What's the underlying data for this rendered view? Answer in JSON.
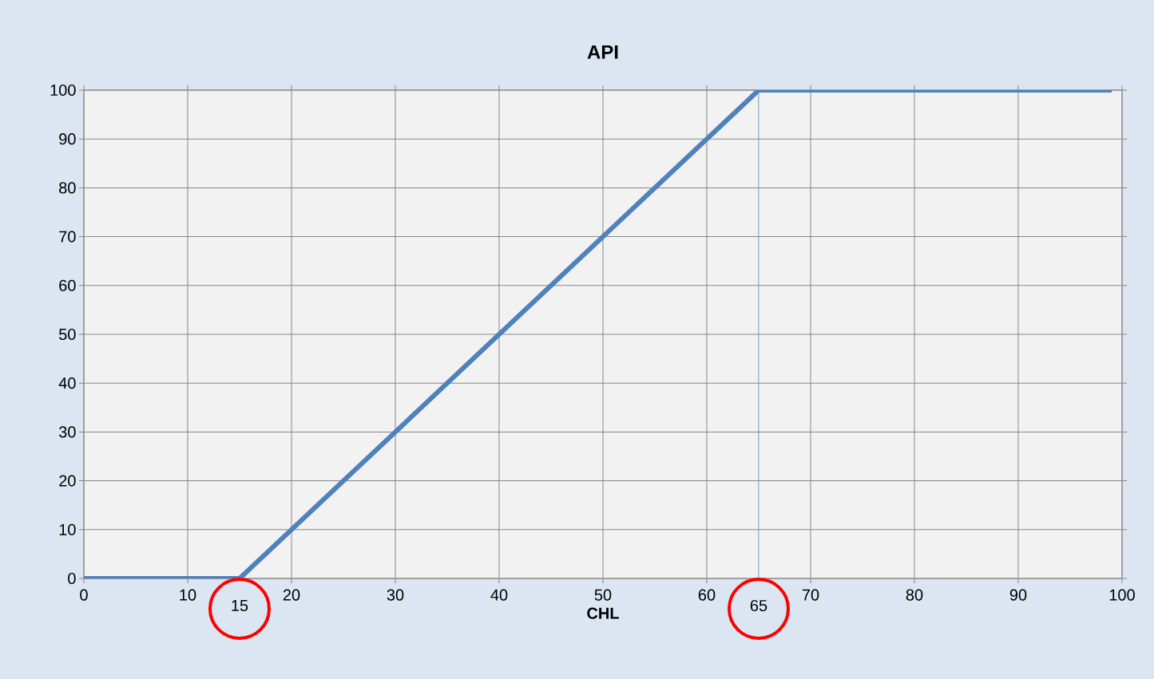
{
  "chart_data": {
    "type": "line",
    "title": "API",
    "xlabel": "CHL",
    "x": [
      0,
      15,
      65,
      99
    ],
    "series": [
      {
        "color": "#4f81bd",
        "values": [
          0,
          0,
          100,
          100
        ]
      }
    ],
    "xlim": [
      0,
      100
    ],
    "xticks": [
      0,
      10,
      20,
      30,
      40,
      50,
      60,
      70,
      80,
      90,
      100
    ],
    "ylim": [
      0,
      100
    ],
    "yticks": [
      0,
      10,
      20,
      30,
      40,
      50,
      60,
      70,
      80,
      90,
      100
    ],
    "grid": true,
    "marker": "none",
    "line_style": "solid",
    "ref_lines": [
      {
        "axis": "x",
        "value": 65,
        "color": "#4f81bd"
      }
    ],
    "annotations": [
      {
        "text": "15",
        "x": 15,
        "y": 0
      },
      {
        "text": "65",
        "x": 65,
        "y": 0
      }
    ]
  }
}
